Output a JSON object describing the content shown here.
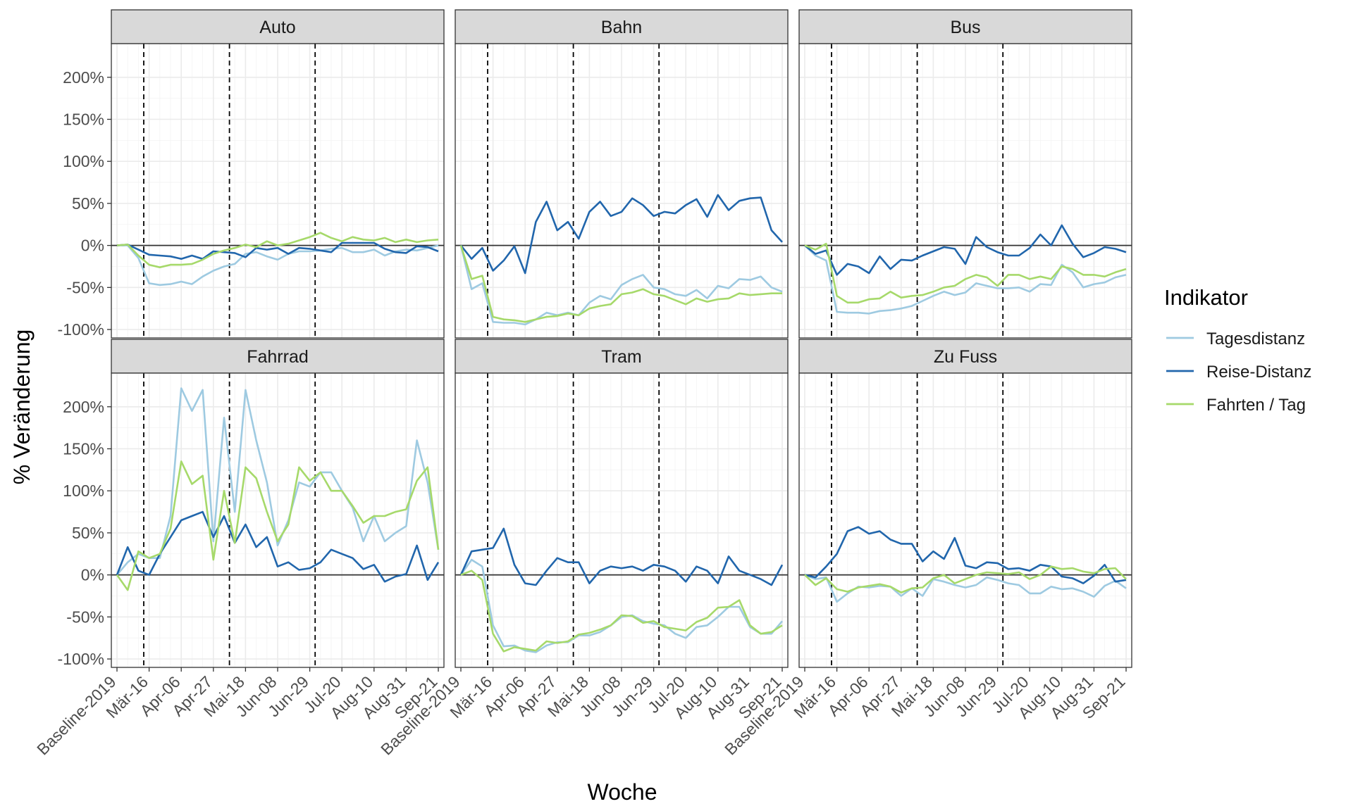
{
  "chart_data": {
    "type": "line",
    "facets": [
      "Auto",
      "Bahn",
      "Bus",
      "Fahrrad",
      "Tram",
      "Zu Fuss"
    ],
    "xlabel": "Woche",
    "ylabel": "% Veränderung",
    "x_ticks": [
      "Baseline-2019",
      "Mär-16",
      "Apr-06",
      "Apr-27",
      "Mai-18",
      "Jun-08",
      "Jun-29",
      "Jul-20",
      "Aug-10",
      "Aug-31",
      "Sep-21"
    ],
    "y_ticks": [
      "-100%",
      "-50%",
      "0%",
      "50%",
      "100%",
      "150%",
      "200%"
    ],
    "y_tick_values": [
      -100,
      -50,
      0,
      50,
      100,
      150,
      200
    ],
    "ylim": [
      -110,
      240
    ],
    "x_range_weeks": [
      0,
      30
    ],
    "vlines_x": [
      2.5,
      10.5,
      18.5
    ],
    "hline_y": 0,
    "grid": true,
    "legend": {
      "title": "Indikator",
      "position": "right",
      "entries": [
        {
          "label": "Tagesdistanz",
          "color": "#9ecae1"
        },
        {
          "label": "Reise-Distanz",
          "color": "#2166ac"
        },
        {
          "label": "Fahrten / Tag",
          "color": "#a6d96a"
        }
      ]
    },
    "series_colors": [
      "#9ecae1",
      "#2166ac",
      "#a6d96a"
    ],
    "panels": [
      {
        "facet": "Auto",
        "series": [
          {
            "name": "Tagesdistanz",
            "values": [
              0,
              0,
              -15,
              -45,
              -47,
              -46,
              -43,
              -46,
              -37,
              -30,
              -25,
              -22,
              -10,
              -8,
              -13,
              -17,
              -10,
              -7,
              -7,
              -6,
              -4,
              -3,
              -8,
              -8,
              -5,
              -12,
              -7,
              -5,
              -6,
              -3,
              0
            ]
          },
          {
            "name": "Reise-Distanz",
            "values": [
              0,
              1,
              -5,
              -11,
              -12,
              -13,
              -16,
              -12,
              -16,
              -7,
              -8,
              -9,
              -14,
              -3,
              -5,
              -3,
              -10,
              -3,
              -4,
              -6,
              -8,
              3,
              3,
              3,
              3,
              -4,
              -8,
              -9,
              -1,
              -2,
              -7
            ]
          },
          {
            "name": "Fahrten / Tag",
            "values": [
              0,
              1,
              -12,
              -23,
              -26,
              -23,
              -23,
              -22,
              -17,
              -10,
              -6,
              -3,
              1,
              -2,
              5,
              0,
              2,
              6,
              10,
              15,
              9,
              5,
              10,
              7,
              6,
              9,
              4,
              7,
              4,
              6,
              7
            ]
          }
        ]
      },
      {
        "facet": "Bahn",
        "series": [
          {
            "name": "Tagesdistanz",
            "values": [
              0,
              -52,
              -45,
              -91,
              -92,
              -92,
              -94,
              -88,
              -80,
              -83,
              -80,
              -83,
              -68,
              -60,
              -64,
              -47,
              -40,
              -35,
              -50,
              -52,
              -58,
              -60,
              -53,
              -63,
              -48,
              -51,
              -40,
              -41,
              -37,
              -50,
              -55
            ]
          },
          {
            "name": "Reise-Distanz",
            "values": [
              0,
              -16,
              -3,
              -30,
              -18,
              -1,
              -33,
              28,
              52,
              18,
              28,
              8,
              40,
              52,
              35,
              40,
              56,
              48,
              35,
              40,
              38,
              48,
              55,
              34,
              60,
              42,
              53,
              56,
              57,
              18,
              4
            ]
          },
          {
            "name": "Fahrten / Tag",
            "values": [
              0,
              -40,
              -36,
              -85,
              -88,
              -89,
              -91,
              -88,
              -85,
              -84,
              -81,
              -83,
              -75,
              -72,
              -70,
              -58,
              -56,
              -52,
              -58,
              -60,
              -65,
              -70,
              -63,
              -67,
              -64,
              -63,
              -57,
              -59,
              -58,
              -57,
              -57
            ]
          }
        ]
      },
      {
        "facet": "Bus",
        "series": [
          {
            "name": "Tagesdistanz",
            "values": [
              0,
              -12,
              -18,
              -79,
              -80,
              -80,
              -81,
              -78,
              -77,
              -75,
              -72,
              -66,
              -60,
              -55,
              -59,
              -56,
              -45,
              -48,
              -51,
              -51,
              -50,
              -55,
              -46,
              -47,
              -23,
              -32,
              -50,
              -46,
              -44,
              -38,
              -35
            ]
          },
          {
            "name": "Reise-Distanz",
            "values": [
              0,
              -10,
              -6,
              -35,
              -22,
              -25,
              -33,
              -13,
              -28,
              -17,
              -18,
              -12,
              -7,
              -2,
              -4,
              -22,
              10,
              -2,
              -8,
              -12,
              -12,
              -3,
              13,
              0,
              24,
              2,
              -14,
              -9,
              -2,
              -4,
              -8
            ]
          },
          {
            "name": "Fahrten / Tag",
            "values": [
              0,
              -5,
              2,
              -60,
              -68,
              -68,
              -64,
              -63,
              -55,
              -62,
              -60,
              -59,
              -55,
              -50,
              -48,
              -40,
              -35,
              -38,
              -48,
              -35,
              -35,
              -40,
              -37,
              -40,
              -25,
              -28,
              -35,
              -35,
              -37,
              -32,
              -28
            ]
          }
        ]
      },
      {
        "facet": "Fahrrad",
        "series": [
          {
            "name": "Tagesdistanz",
            "values": [
              0,
              15,
              25,
              20,
              20,
              70,
              222,
              195,
              220,
              40,
              187,
              75,
              220,
              160,
              110,
              35,
              65,
              110,
              105,
              122,
              122,
              100,
              80,
              40,
              70,
              40,
              50,
              58,
              160,
              110,
              30
            ]
          },
          {
            "name": "Reise-Distanz",
            "values": [
              0,
              33,
              5,
              0,
              25,
              45,
              65,
              70,
              75,
              45,
              70,
              38,
              60,
              33,
              45,
              10,
              15,
              6,
              8,
              15,
              30,
              25,
              20,
              7,
              12,
              -8,
              -2,
              1,
              35,
              -6,
              15
            ]
          },
          {
            "name": "Fahrten / Tag",
            "values": [
              0,
              -18,
              28,
              20,
              25,
              55,
              135,
              108,
              118,
              18,
              100,
              38,
              128,
              115,
              75,
              40,
              60,
              128,
              112,
              122,
              100,
              100,
              82,
              62,
              70,
              70,
              75,
              78,
              112,
              128,
              30
            ]
          }
        ]
      },
      {
        "facet": "Tram",
        "series": [
          {
            "name": "Tagesdistanz",
            "values": [
              0,
              18,
              10,
              -60,
              -85,
              -84,
              -90,
              -92,
              -84,
              -80,
              -80,
              -72,
              -72,
              -68,
              -60,
              -50,
              -48,
              -55,
              -58,
              -60,
              -70,
              -75,
              -62,
              -60,
              -50,
              -38,
              -38,
              -62,
              -70,
              -70,
              -55
            ]
          },
          {
            "name": "Reise-Distanz",
            "values": [
              0,
              28,
              30,
              32,
              55,
              12,
              -10,
              -12,
              5,
              20,
              15,
              15,
              -10,
              5,
              10,
              8,
              10,
              5,
              12,
              10,
              5,
              -8,
              10,
              5,
              -10,
              22,
              5,
              0,
              -5,
              -12,
              12
            ]
          },
          {
            "name": "Fahrten / Tag",
            "values": [
              0,
              5,
              -6,
              -70,
              -91,
              -86,
              -88,
              -90,
              -79,
              -81,
              -79,
              -71,
              -69,
              -65,
              -60,
              -48,
              -49,
              -57,
              -55,
              -62,
              -64,
              -66,
              -56,
              -51,
              -39,
              -38,
              -30,
              -60,
              -70,
              -68,
              -60
            ]
          }
        ]
      },
      {
        "facet": "Zu Fuss",
        "series": [
          {
            "name": "Tagesdistanz",
            "values": [
              0,
              -5,
              -3,
              -32,
              -22,
              -14,
              -15,
              -13,
              -14,
              -25,
              -16,
              -25,
              -5,
              -8,
              -12,
              -15,
              -12,
              -3,
              -6,
              -10,
              -12,
              -22,
              -22,
              -14,
              -17,
              -16,
              -20,
              -26,
              -13,
              -7,
              -16
            ]
          },
          {
            "name": "Reise-Distanz",
            "values": [
              0,
              -3,
              10,
              25,
              52,
              57,
              49,
              52,
              42,
              37,
              37,
              16,
              28,
              19,
              44,
              11,
              8,
              15,
              14,
              7,
              8,
              5,
              12,
              10,
              -2,
              -4,
              -10,
              -1,
              12,
              -8,
              -6
            ]
          },
          {
            "name": "Fahrten / Tag",
            "values": [
              0,
              -12,
              -4,
              -17,
              -20,
              -15,
              -13,
              -11,
              -14,
              -21,
              -16,
              -15,
              -4,
              0,
              -10,
              -5,
              0,
              3,
              2,
              1,
              3,
              -5,
              0,
              10,
              7,
              8,
              4,
              2,
              7,
              8,
              -5
            ]
          }
        ]
      }
    ]
  }
}
